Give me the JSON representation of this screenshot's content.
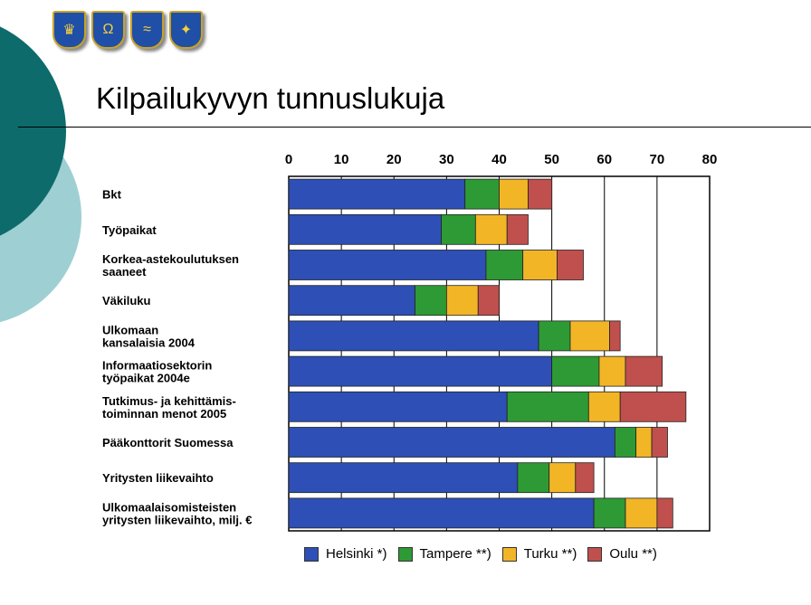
{
  "slide": {
    "title": "Kilpailukyvyn tunnuslukuja",
    "colors": {
      "dark_circle": "#0d6b6b",
      "light_circle": "#9ecfd3"
    }
  },
  "crests": [
    {
      "icon": "crown-ship-crest-icon",
      "glyph": "♛"
    },
    {
      "icon": "crown-horseshoe-crest-icon",
      "glyph": "Ω"
    },
    {
      "icon": "crown-wave-crest-icon",
      "glyph": "≈"
    },
    {
      "icon": "crown-squirrel-crest-icon",
      "glyph": "✦"
    }
  ],
  "chart_data": {
    "type": "bar",
    "orientation": "horizontal",
    "stacked": true,
    "xlim": [
      0,
      80
    ],
    "xticks": [
      "0",
      "10",
      "20",
      "30",
      "40",
      "50",
      "60",
      "70",
      "80"
    ],
    "grid": true,
    "legend_position": "bottom",
    "categories": [
      [
        "Bkt"
      ],
      [
        "Työpaikat"
      ],
      [
        "Korkea-astekoulutuksen",
        "saaneet"
      ],
      [
        "Väkiluku"
      ],
      [
        "Ulkomaan",
        "kansalaisia 2004"
      ],
      [
        "Informaatiosektorin",
        "työpaikat 2004e"
      ],
      [
        "Tutkimus- ja kehittämis-",
        "toiminnan menot 2005"
      ],
      [
        "Pääkonttorit Suomessa"
      ],
      [
        "Yritysten liikevaihto"
      ],
      [
        "Ulkomaalaisomisteisten",
        "yritysten liikevaihto, milj. €"
      ]
    ],
    "series": [
      {
        "name": "Helsinki *)",
        "color": "#2e4fb5",
        "values": [
          33.5,
          29,
          37.5,
          24,
          47.5,
          50,
          41.5,
          62,
          43.5,
          58
        ]
      },
      {
        "name": "Tampere **)",
        "color": "#2e9a35",
        "values": [
          6.5,
          6.5,
          7,
          6,
          6,
          9,
          15.5,
          4,
          6,
          6
        ]
      },
      {
        "name": "Turku **)",
        "color": "#f2b526",
        "values": [
          5.5,
          6,
          6.5,
          6,
          7.5,
          5,
          6,
          3,
          5,
          6
        ]
      },
      {
        "name": "Oulu **)",
        "color": "#c0504d",
        "values": [
          4.5,
          4,
          5,
          4,
          2,
          7,
          12.5,
          3,
          3.5,
          3
        ]
      }
    ]
  }
}
